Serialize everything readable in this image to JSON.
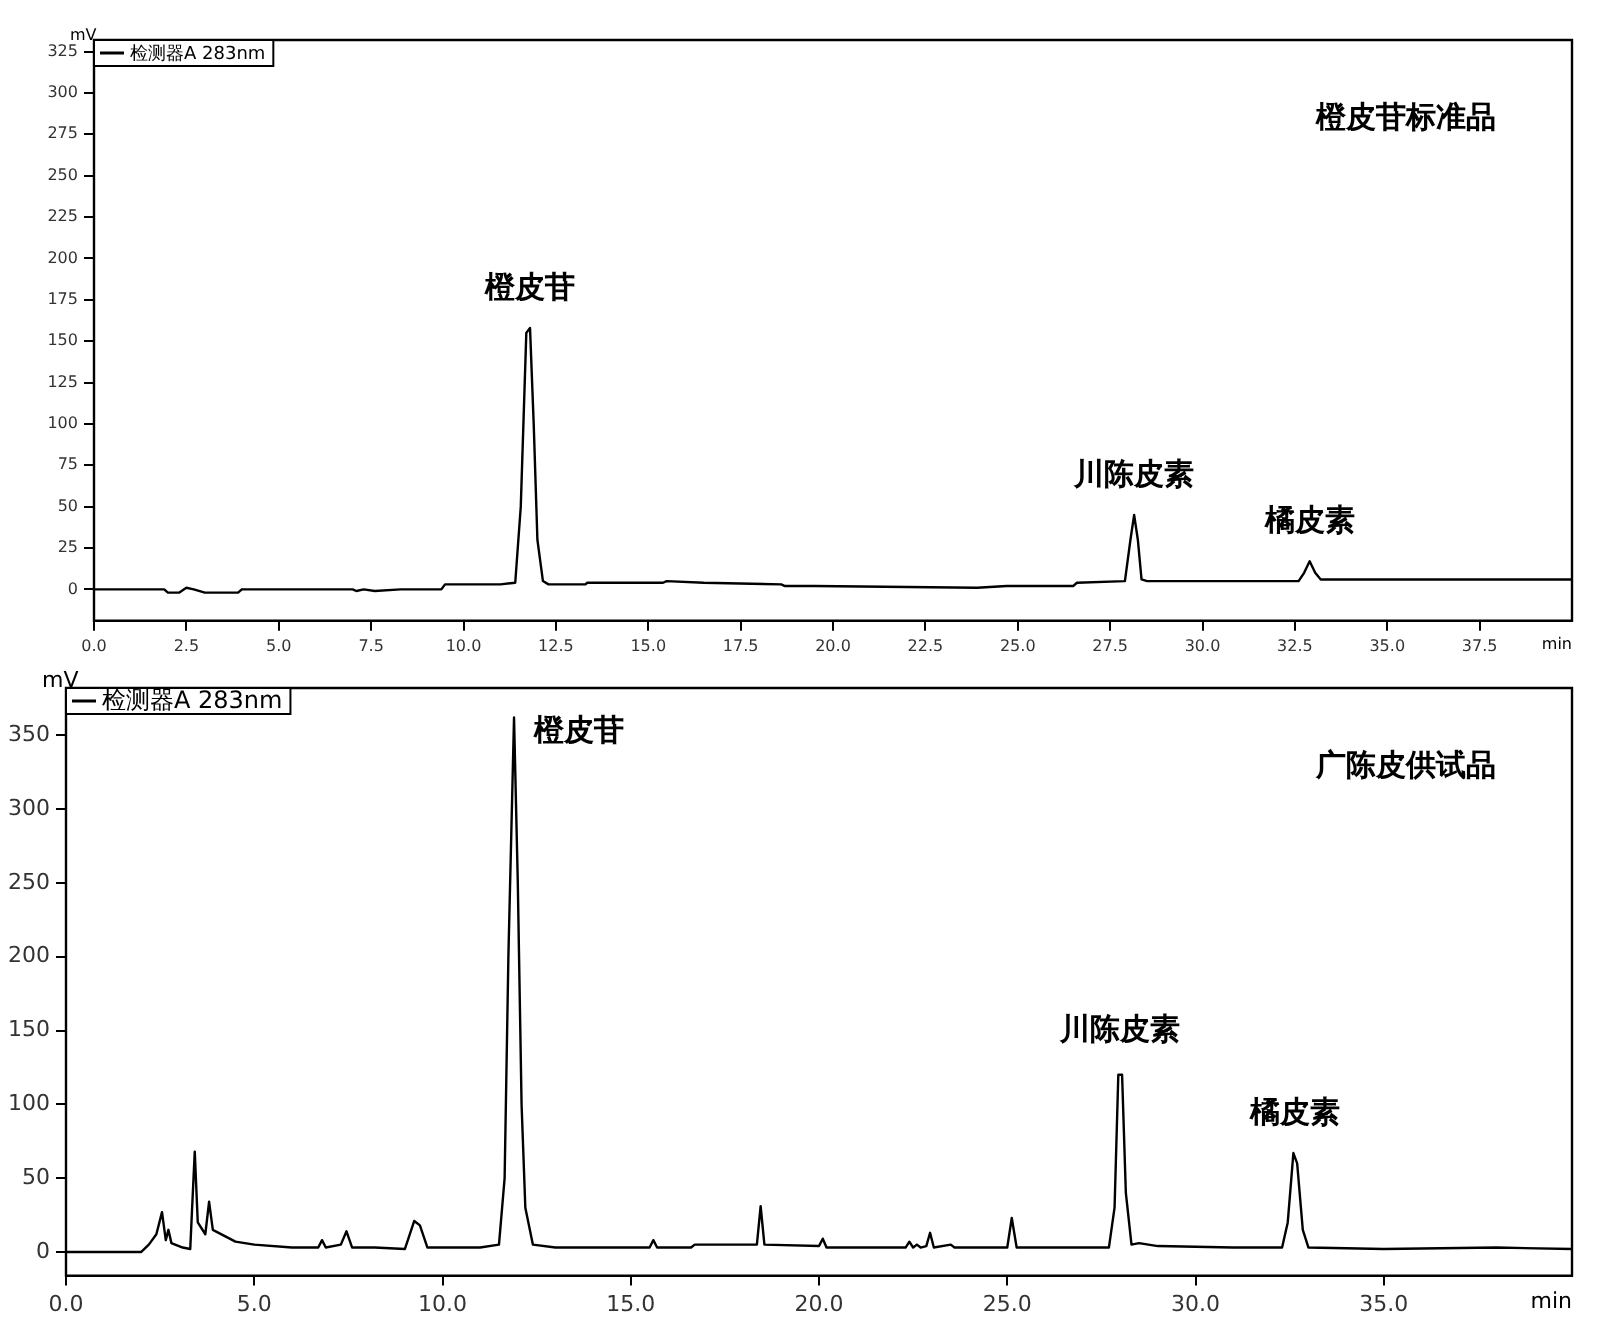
{
  "chart_data": [
    {
      "type": "line",
      "title": "橙皮苷标准品",
      "xlabel": "min",
      "ylabel": "mV",
      "legend": "top left",
      "marker": "none",
      "grid": false,
      "line_style": "solid",
      "xlim": [
        0,
        40
      ],
      "xticks": [
        {
          "value": 0,
          "label": "0.0"
        },
        {
          "value": 2.5,
          "label": "2.5"
        },
        {
          "value": 5,
          "label": "5.0"
        },
        {
          "value": 7.5,
          "label": "7.5"
        },
        {
          "value": 10,
          "label": "10.0"
        },
        {
          "value": 12.5,
          "label": "12.5"
        },
        {
          "value": 15,
          "label": "15.0"
        },
        {
          "value": 17.5,
          "label": "17.5"
        },
        {
          "value": 20,
          "label": "20.0"
        },
        {
          "value": 22.5,
          "label": "22.5"
        },
        {
          "value": 25,
          "label": "25.0"
        },
        {
          "value": 27.5,
          "label": "27.5"
        },
        {
          "value": 30,
          "label": "30.0"
        },
        {
          "value": 32.5,
          "label": "32.5"
        },
        {
          "value": 35,
          "label": "35.0"
        },
        {
          "value": 37.5,
          "label": "37.5"
        }
      ],
      "ylim": [
        -19,
        332
      ],
      "yticks": [
        0,
        25,
        50,
        75,
        100,
        125,
        150,
        175,
        200,
        225,
        250,
        275,
        300,
        325
      ],
      "series": [
        {
          "name": "检测器A 283nm",
          "color": "#000000",
          "x": [
            0,
            1.9,
            2.0,
            2.3,
            2.5,
            2.7,
            3.0,
            3.9,
            4.0,
            7.0,
            7.1,
            7.3,
            7.6,
            8.3,
            9.4,
            9.5,
            11.0,
            11.4,
            11.55,
            11.7,
            11.8,
            11.9,
            12.0,
            12.15,
            12.3,
            13.3,
            13.35,
            15.4,
            15.5,
            16.5,
            18.6,
            18.7,
            19.5,
            23.9,
            24.7,
            26.5,
            26.6,
            27.9,
            28.05,
            28.15,
            28.25,
            28.35,
            28.5,
            32.6,
            32.75,
            32.9,
            33.05,
            33.2,
            33.5,
            40
          ],
          "values": [
            0,
            0,
            -2,
            -2,
            1,
            0,
            -2,
            -2,
            0,
            0,
            -1,
            0,
            -1,
            0,
            0,
            3,
            3,
            4,
            50,
            155,
            158,
            100,
            30,
            5,
            3,
            3,
            4,
            4,
            5,
            4,
            3,
            2,
            2,
            1,
            2,
            2,
            4,
            5,
            30,
            45,
            30,
            6,
            5,
            5,
            10,
            17,
            10,
            6,
            6,
            6
          ]
        }
      ],
      "annotations": [
        {
          "text": "橙皮苷",
          "x": 11.8,
          "y": 158
        },
        {
          "text": "川陈皮素",
          "x": 28.15,
          "y": 45
        },
        {
          "text": "橘皮素",
          "x": 32.9,
          "y": 17
        }
      ]
    },
    {
      "type": "line",
      "title": "广陈皮供试品",
      "xlabel": "min",
      "ylabel": "mV",
      "legend": "top left",
      "marker": "none",
      "grid": false,
      "line_style": "solid",
      "xlim": [
        0,
        40
      ],
      "xticks": [
        {
          "value": 0,
          "label": "0.0"
        },
        {
          "value": 5,
          "label": "5.0"
        },
        {
          "value": 10,
          "label": "10.0"
        },
        {
          "value": 15,
          "label": "15.0"
        },
        {
          "value": 20,
          "label": "20.0"
        },
        {
          "value": 25,
          "label": "25.0"
        },
        {
          "value": 30,
          "label": "30.0"
        },
        {
          "value": 35,
          "label": "35.0"
        }
      ],
      "ylim": [
        -16,
        382
      ],
      "yticks": [
        0,
        50,
        100,
        150,
        200,
        250,
        300,
        350
      ],
      "series": [
        {
          "name": "检测器A 283nm",
          "color": "#000000",
          "x": [
            0,
            2.0,
            2.2,
            2.4,
            2.55,
            2.65,
            2.72,
            2.8,
            3.1,
            3.3,
            3.35,
            3.42,
            3.5,
            3.7,
            3.8,
            3.9,
            4.5,
            5.0,
            6.0,
            6.7,
            6.8,
            6.9,
            7.3,
            7.45,
            7.6,
            8.2,
            9.0,
            9.25,
            9.4,
            9.6,
            11.0,
            11.5,
            11.65,
            11.75,
            11.9,
            12.0,
            12.1,
            12.2,
            12.4,
            13.0,
            15.5,
            15.6,
            15.7,
            16.6,
            16.7,
            18.35,
            18.45,
            18.55,
            20.0,
            20.1,
            20.2,
            22.3,
            22.4,
            22.5,
            22.6,
            22.7,
            22.85,
            22.95,
            23.05,
            23.5,
            23.6,
            25.0,
            25.12,
            25.25,
            27.7,
            27.85,
            27.95,
            28.05,
            28.15,
            28.3,
            28.5,
            29.0,
            31.0,
            32.3,
            32.45,
            32.6,
            32.7,
            32.85,
            33.0,
            35.0,
            38.0,
            40
          ],
          "values": [
            0,
            0,
            5,
            12,
            27,
            8,
            15,
            6,
            3,
            2,
            30,
            68,
            20,
            12,
            34,
            15,
            7,
            5,
            3,
            3,
            8,
            3,
            5,
            14,
            3,
            3,
            2,
            21,
            18,
            3,
            3,
            5,
            50,
            200,
            362,
            250,
            100,
            30,
            5,
            3,
            3,
            8,
            3,
            3,
            5,
            5,
            31,
            5,
            4,
            9,
            3,
            3,
            7,
            3,
            5,
            3,
            4,
            13,
            3,
            5,
            3,
            3,
            23,
            3,
            3,
            30,
            120,
            120,
            40,
            5,
            6,
            4,
            3,
            3,
            20,
            67,
            60,
            15,
            3,
            2,
            3,
            2
          ]
        }
      ],
      "annotations": [
        {
          "text": "橙皮苷",
          "x": 11.9,
          "y": 362
        },
        {
          "text": "川陈皮素",
          "x": 28.0,
          "y": 123
        },
        {
          "text": "橘皮素",
          "x": 32.65,
          "y": 67
        }
      ]
    }
  ]
}
